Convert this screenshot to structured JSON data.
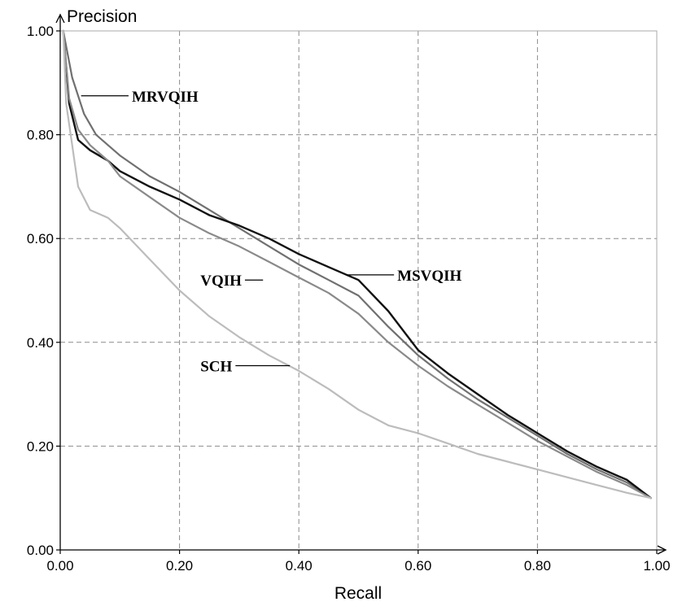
{
  "chart_data": {
    "type": "line",
    "xlabel": "Recall",
    "ylabel": "Precision",
    "xlim": [
      0,
      1
    ],
    "ylim": [
      0,
      1
    ],
    "grid": true,
    "xticks": [
      "0.00",
      "0.20",
      "0.40",
      "0.60",
      "0.80",
      "1.00"
    ],
    "yticks": [
      "0.00",
      "0.20",
      "0.40",
      "0.60",
      "0.80",
      "1.00"
    ],
    "series": [
      {
        "name": "MRVQIH",
        "color": "#707070",
        "label_at": [
          0.12,
          0.875
        ],
        "pointer_to": [
          0.035,
          0.875
        ],
        "x": [
          0.005,
          0.02,
          0.04,
          0.06,
          0.1,
          0.15,
          0.2,
          0.25,
          0.3,
          0.35,
          0.4,
          0.45,
          0.5,
          0.55,
          0.6,
          0.65,
          0.7,
          0.75,
          0.8,
          0.85,
          0.9,
          0.95,
          0.99
        ],
        "y": [
          1.0,
          0.91,
          0.84,
          0.8,
          0.76,
          0.72,
          0.69,
          0.655,
          0.62,
          0.585,
          0.55,
          0.52,
          0.49,
          0.43,
          0.375,
          0.33,
          0.29,
          0.255,
          0.22,
          0.185,
          0.155,
          0.13,
          0.1
        ]
      },
      {
        "name": "MSVQIH",
        "color": "#111111",
        "label_at": [
          0.565,
          0.53
        ],
        "pointer_to": [
          0.48,
          0.53
        ],
        "x": [
          0.005,
          0.015,
          0.03,
          0.05,
          0.08,
          0.1,
          0.15,
          0.2,
          0.25,
          0.3,
          0.35,
          0.4,
          0.45,
          0.5,
          0.55,
          0.6,
          0.65,
          0.7,
          0.75,
          0.8,
          0.85,
          0.9,
          0.95,
          0.99
        ],
        "y": [
          1.0,
          0.86,
          0.79,
          0.77,
          0.75,
          0.73,
          0.7,
          0.675,
          0.645,
          0.625,
          0.6,
          0.57,
          0.545,
          0.52,
          0.46,
          0.385,
          0.34,
          0.3,
          0.26,
          0.225,
          0.19,
          0.16,
          0.135,
          0.1
        ]
      },
      {
        "name": "VQIH",
        "color": "#8a8a8a",
        "label_at": [
          0.265,
          0.52
        ],
        "pointer_to": [
          0.34,
          0.52
        ],
        "x": [
          0.005,
          0.015,
          0.03,
          0.05,
          0.08,
          0.1,
          0.15,
          0.2,
          0.25,
          0.3,
          0.35,
          0.4,
          0.45,
          0.5,
          0.55,
          0.6,
          0.65,
          0.7,
          0.75,
          0.8,
          0.85,
          0.9,
          0.95,
          0.99
        ],
        "y": [
          1.0,
          0.87,
          0.81,
          0.78,
          0.75,
          0.72,
          0.68,
          0.64,
          0.61,
          0.585,
          0.555,
          0.525,
          0.495,
          0.455,
          0.4,
          0.355,
          0.315,
          0.28,
          0.245,
          0.21,
          0.18,
          0.15,
          0.125,
          0.1
        ]
      },
      {
        "name": "SCH",
        "color": "#bcbcbc",
        "label_at": [
          0.265,
          0.355
        ],
        "pointer_to": [
          0.385,
          0.355
        ],
        "x": [
          0.005,
          0.01,
          0.02,
          0.03,
          0.05,
          0.08,
          0.1,
          0.15,
          0.2,
          0.25,
          0.3,
          0.35,
          0.4,
          0.45,
          0.5,
          0.55,
          0.6,
          0.65,
          0.7,
          0.75,
          0.8,
          0.85,
          0.9,
          0.95,
          0.99
        ],
        "y": [
          1.0,
          0.86,
          0.78,
          0.7,
          0.655,
          0.64,
          0.62,
          0.56,
          0.5,
          0.45,
          0.41,
          0.375,
          0.345,
          0.31,
          0.27,
          0.24,
          0.225,
          0.205,
          0.185,
          0.17,
          0.155,
          0.14,
          0.125,
          0.11,
          0.1
        ]
      }
    ]
  }
}
